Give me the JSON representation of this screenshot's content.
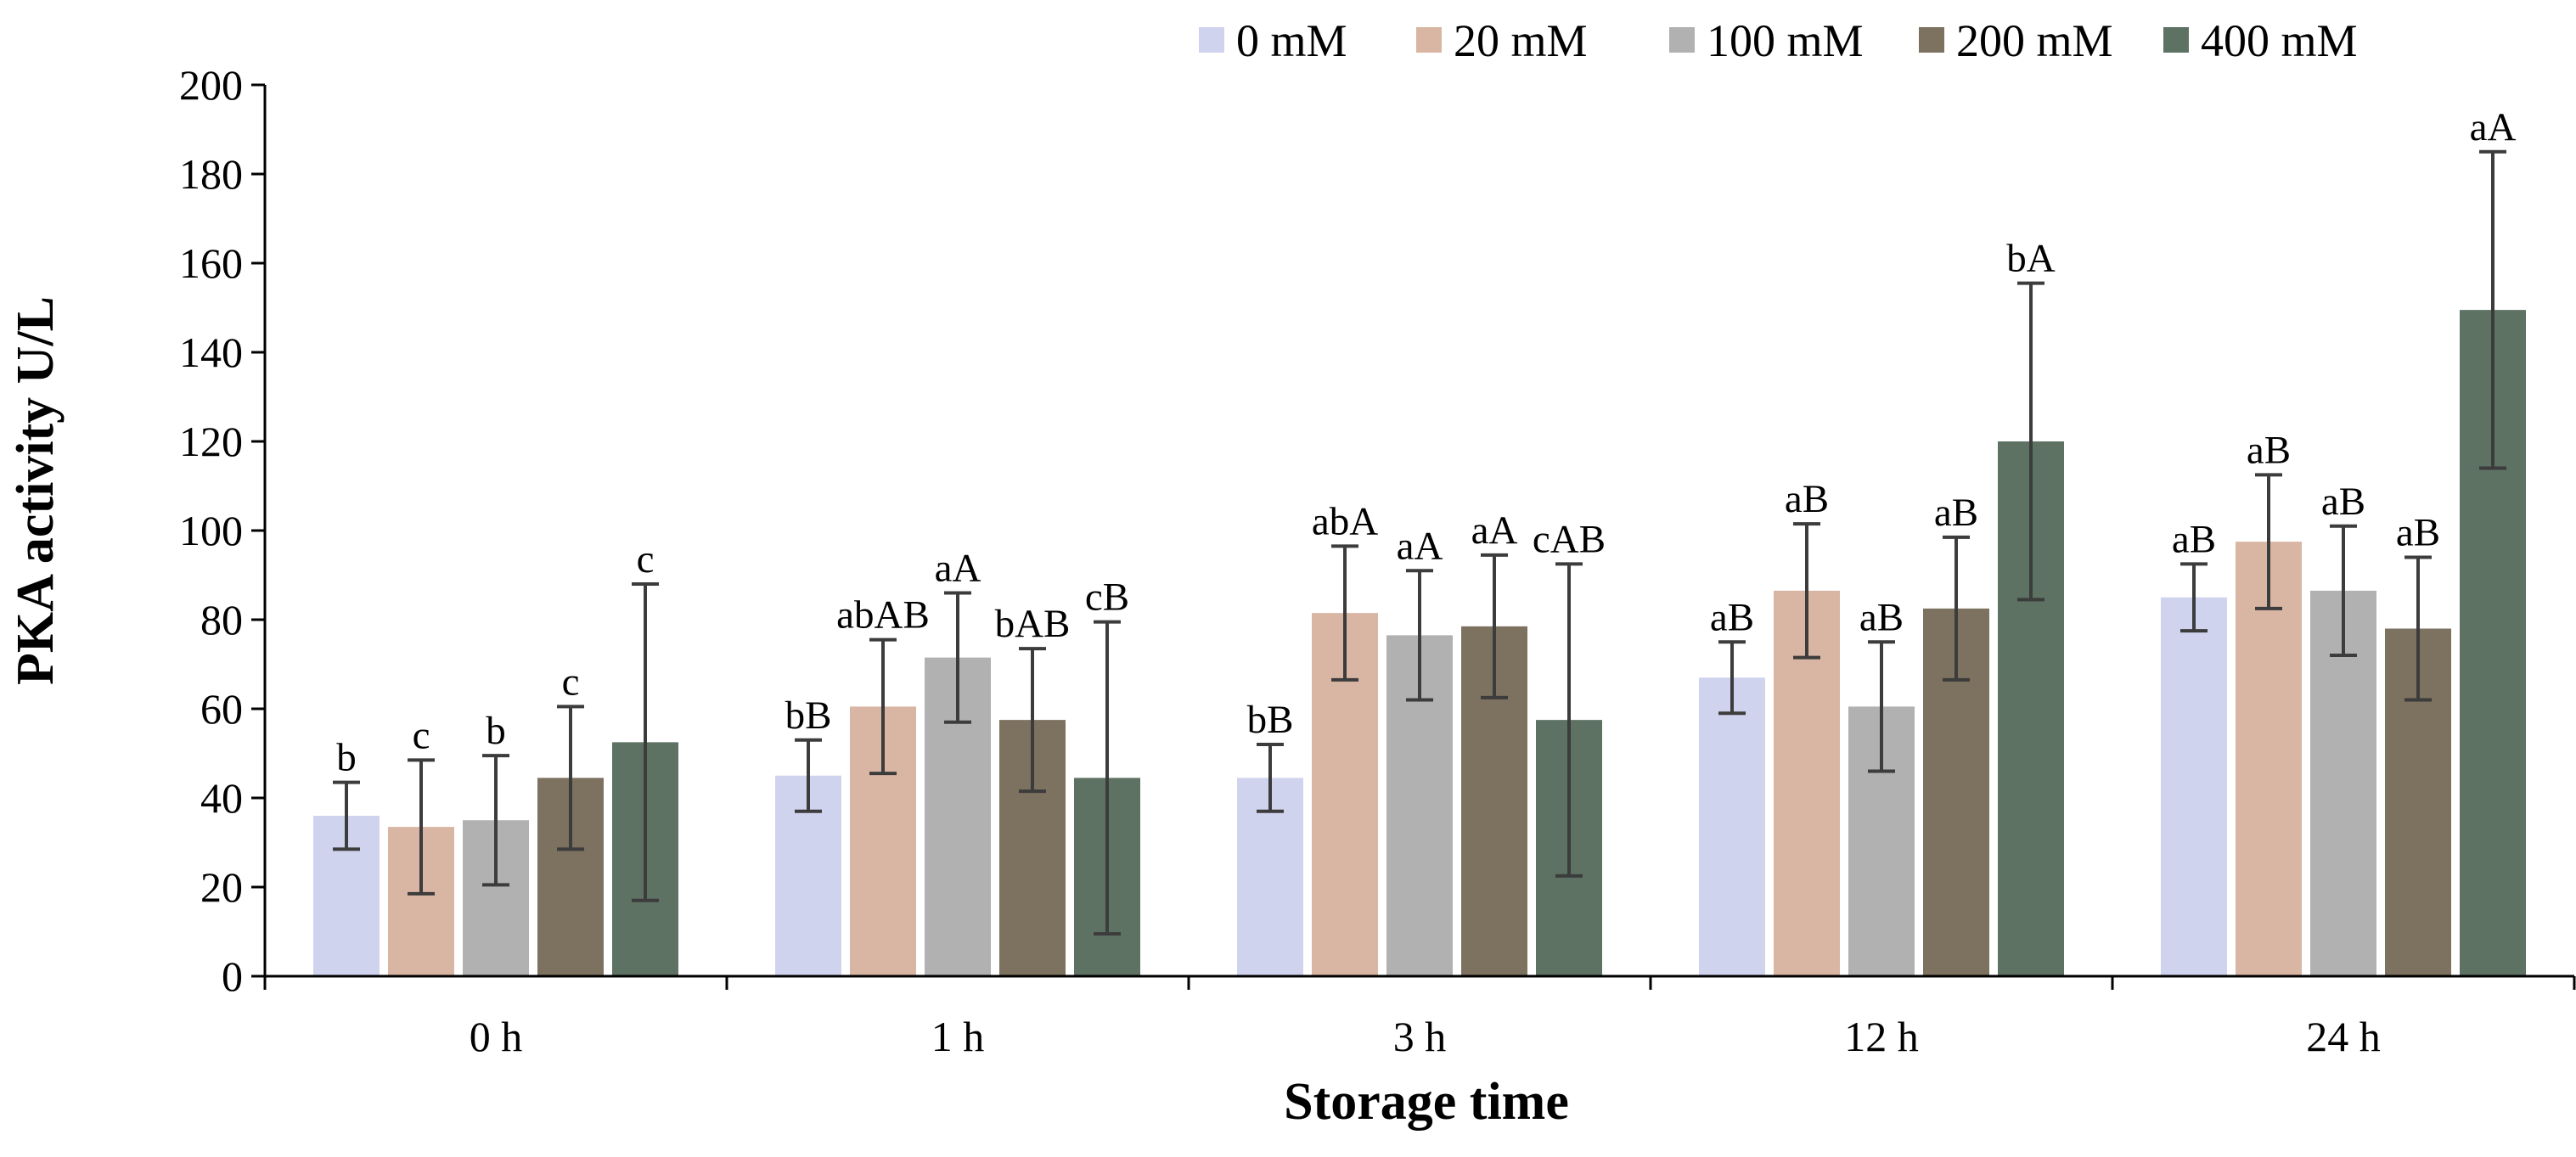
{
  "chart_data": {
    "type": "bar",
    "title": "",
    "xlabel": "Storage time",
    "ylabel": "PKA activity U/L",
    "ylim": [
      0,
      200
    ],
    "yticks": [
      0,
      20,
      40,
      60,
      80,
      100,
      120,
      140,
      160,
      180,
      200
    ],
    "grid": false,
    "legend_position": "top-right",
    "categories": [
      "0 h",
      "1 h",
      "3 h",
      "12 h",
      "24 h"
    ],
    "series": [
      {
        "name": "0 mM",
        "color": "#d0d3ee",
        "values": [
          36,
          45,
          44.5,
          67,
          85
        ],
        "errors": [
          7.5,
          8,
          7.5,
          8,
          7.5
        ],
        "labels": [
          "b",
          "bB",
          "bB",
          "aB",
          "aB"
        ]
      },
      {
        "name": "20 mM",
        "color": "#d9b6a3",
        "values": [
          33.5,
          60.5,
          81.5,
          86.5,
          97.5
        ],
        "errors": [
          15,
          15,
          15,
          15,
          15
        ],
        "labels": [
          "c",
          "abAB",
          "abA",
          "aB",
          "aB"
        ]
      },
      {
        "name": "100 mM",
        "color": "#b1b1b1",
        "values": [
          35,
          71.5,
          76.5,
          60.5,
          86.5
        ],
        "errors": [
          14.5,
          14.5,
          14.5,
          14.5,
          14.5
        ],
        "labels": [
          "b",
          "aA",
          "aA",
          "aB",
          "aB"
        ]
      },
      {
        "name": "200 mM",
        "color": "#7d715f",
        "values": [
          44.5,
          57.5,
          78.5,
          82.5,
          78
        ],
        "errors": [
          16,
          16,
          16,
          16,
          16
        ],
        "labels": [
          "c",
          "bAB",
          "aA",
          "aB",
          "aB"
        ]
      },
      {
        "name": "400 mM",
        "color": "#5d7263",
        "values": [
          52.5,
          44.5,
          57.5,
          120,
          149.5
        ],
        "errors": [
          35.5,
          35,
          35,
          35.5,
          35.5
        ],
        "labels": [
          "c",
          "cB",
          "cAB",
          "bA",
          "aA"
        ]
      }
    ]
  }
}
